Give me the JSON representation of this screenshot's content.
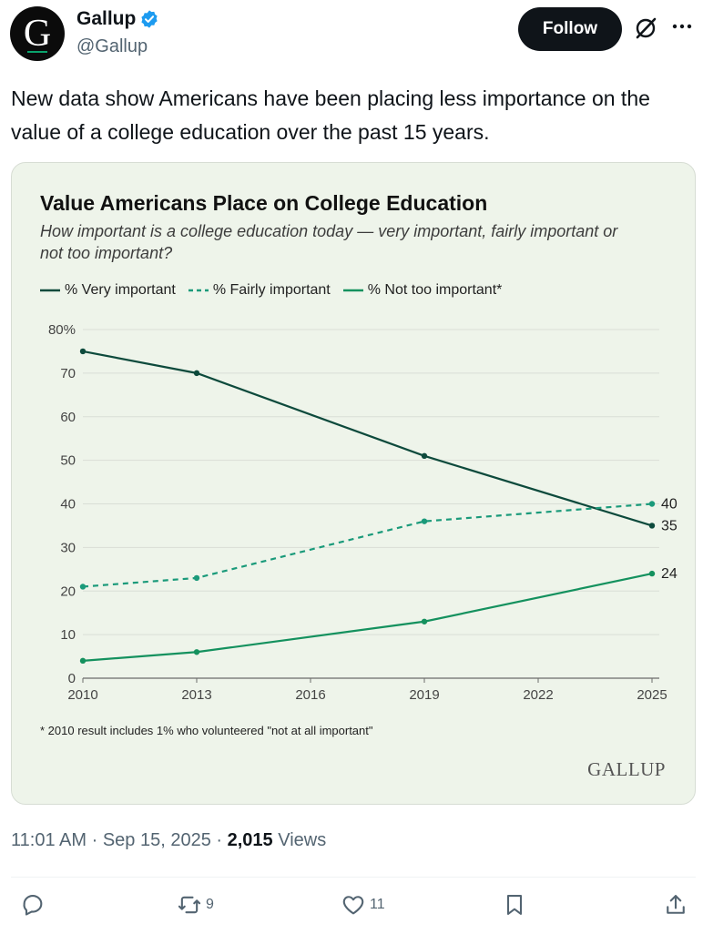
{
  "account": {
    "name": "Gallup",
    "handle": "@Gallup",
    "avatar_letter": "G",
    "follow_label": "Follow"
  },
  "tweet": {
    "text": "New data show Americans have been placing less importance on the value of a college education over the past 15 years."
  },
  "chart_data": {
    "type": "line",
    "title": "Value Americans Place on College Education",
    "subtitle": "How important is a college education today — very important, fairly important or not too important?",
    "x_ticks": [
      "2010",
      "2013",
      "2016",
      "2019",
      "2022",
      "2025"
    ],
    "y_ticks": [
      "0",
      "10",
      "20",
      "30",
      "40",
      "50",
      "60",
      "70",
      "80%"
    ],
    "ylim": [
      0,
      80
    ],
    "xlim": [
      2010,
      2025
    ],
    "grid": true,
    "legend_position": "top",
    "series": [
      {
        "name": "% Very important",
        "style": "solid",
        "color": "#0d4a3c",
        "x": [
          2010,
          2013,
          2019,
          2025
        ],
        "values": [
          75,
          70,
          51,
          35
        ],
        "end_label": "35"
      },
      {
        "name": "% Fairly important",
        "style": "dashed",
        "color": "#1a9a7a",
        "x": [
          2010,
          2013,
          2019,
          2025
        ],
        "values": [
          21,
          23,
          36,
          40
        ],
        "end_label": "40"
      },
      {
        "name": "% Not too important*",
        "style": "solid",
        "color": "#14915e",
        "x": [
          2010,
          2013,
          2019,
          2025
        ],
        "values": [
          4,
          6,
          13,
          24
        ],
        "end_label": "24"
      }
    ],
    "footnote": "* 2010 result includes 1% who volunteered \"not at all important\"",
    "source_brand": "GALLUP"
  },
  "meta": {
    "time": "11:01 AM",
    "separator": "·",
    "date": "Sep 15, 2025",
    "views_count": "2,015",
    "views_label": "Views"
  },
  "actions": {
    "replies": "",
    "reposts": "9",
    "likes": "11"
  },
  "colors": {
    "verified": "#1d9bf0",
    "card_bg": "#eef4ea",
    "follow_bg": "#0f1419"
  }
}
